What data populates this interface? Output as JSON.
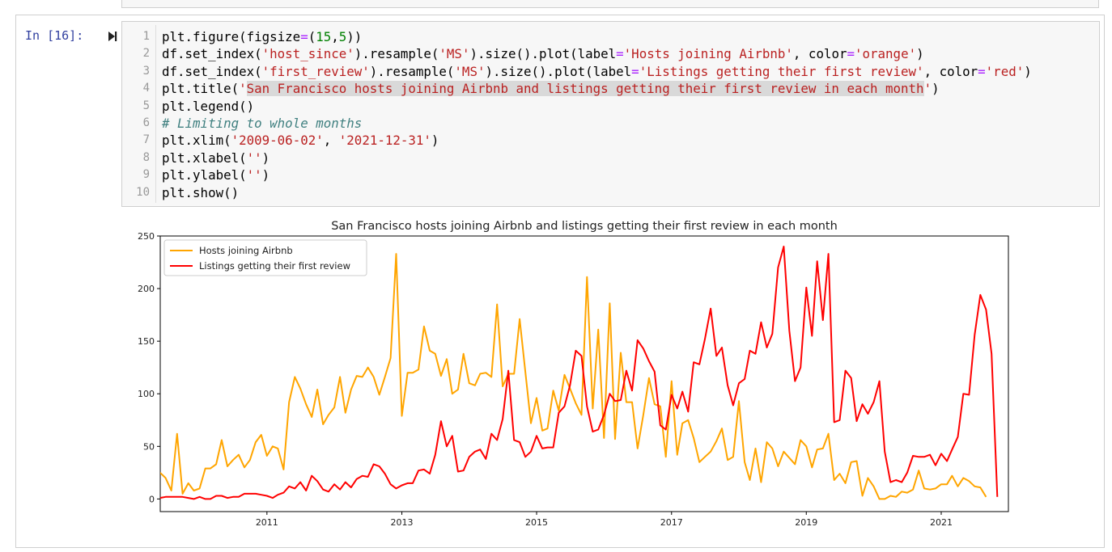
{
  "previous_cell": {},
  "cell": {
    "prompt": "In [16]:",
    "code": [
      {
        "no": "1",
        "parts": [
          {
            "t": "plt.figure(figsize"
          },
          {
            "t": "=",
            "k": "o"
          },
          {
            "t": "("
          },
          {
            "t": "15",
            "k": "n"
          },
          {
            "t": ","
          },
          {
            "t": "5",
            "k": "n"
          },
          {
            "t": "))"
          }
        ]
      },
      {
        "no": "2",
        "parts": [
          {
            "t": "df.set_index("
          },
          {
            "t": "'host_since'",
            "k": "s"
          },
          {
            "t": ").resample("
          },
          {
            "t": "'MS'",
            "k": "s"
          },
          {
            "t": ").size().plot(label"
          },
          {
            "t": "=",
            "k": "o"
          },
          {
            "t": "'Hosts joining Airbnb'",
            "k": "s"
          },
          {
            "t": ", color"
          },
          {
            "t": "=",
            "k": "o"
          },
          {
            "t": "'orange'",
            "k": "s"
          },
          {
            "t": ")"
          }
        ]
      },
      {
        "no": "3",
        "parts": [
          {
            "t": "df.set_index("
          },
          {
            "t": "'first_review'",
            "k": "s"
          },
          {
            "t": ").resample("
          },
          {
            "t": "'MS'",
            "k": "s"
          },
          {
            "t": ").size().plot(label"
          },
          {
            "t": "=",
            "k": "o"
          },
          {
            "t": "'Listings getting their first review'",
            "k": "s"
          },
          {
            "t": ", color"
          },
          {
            "t": "=",
            "k": "o"
          },
          {
            "t": "'red'",
            "k": "s"
          },
          {
            "t": ")"
          }
        ]
      },
      {
        "no": "4",
        "parts": [
          {
            "t": "plt.title("
          },
          {
            "t": "'",
            "k": "s"
          },
          {
            "t": "San Francisco hosts joining Airbnb and listings getting their first review in each month",
            "k": "s hl"
          },
          {
            "t": "'",
            "k": "s"
          },
          {
            "t": ")"
          }
        ]
      },
      {
        "no": "5",
        "parts": [
          {
            "t": "plt.legend()"
          }
        ]
      },
      {
        "no": "6",
        "parts": [
          {
            "t": "# Limiting to whole months",
            "k": "c"
          }
        ]
      },
      {
        "no": "7",
        "parts": [
          {
            "t": "plt.xlim("
          },
          {
            "t": "'2009-06-02'",
            "k": "s"
          },
          {
            "t": ", "
          },
          {
            "t": "'2021-12-31'",
            "k": "s"
          },
          {
            "t": ")"
          }
        ]
      },
      {
        "no": "8",
        "parts": [
          {
            "t": "plt.xlabel("
          },
          {
            "t": "''",
            "k": "s"
          },
          {
            "t": ")"
          }
        ]
      },
      {
        "no": "9",
        "parts": [
          {
            "t": "plt.ylabel("
          },
          {
            "t": "''",
            "k": "s"
          },
          {
            "t": ")"
          }
        ]
      },
      {
        "no": "10",
        "parts": [
          {
            "t": "plt.show()"
          }
        ]
      }
    ]
  },
  "colors": {
    "prompt": "#303f9f",
    "hosts": "orange",
    "listings": "red"
  },
  "chart_data": {
    "type": "line",
    "title": "San Francisco hosts joining Airbnb and listings getting their first review in each month",
    "xlabel": "",
    "ylabel": "",
    "x_tick_labels": [
      "2011",
      "2013",
      "2015",
      "2017",
      "2019",
      "2021"
    ],
    "y_tick_labels": [
      "0",
      "50",
      "100",
      "150",
      "200",
      "250"
    ],
    "xlim": [
      "2009-06-02",
      "2021-12-31"
    ],
    "ylim": [
      -12,
      250
    ],
    "grid": false,
    "legend_position": "upper-left",
    "series": [
      {
        "name": "Hosts joining Airbnb",
        "color": "orange",
        "start": "2009-06",
        "values": [
          25,
          20,
          8,
          62,
          5,
          15,
          8,
          10,
          29,
          29,
          33,
          56,
          31,
          37,
          42,
          30,
          37,
          54,
          61,
          41,
          50,
          48,
          28,
          92,
          116,
          105,
          90,
          78,
          104,
          71,
          80,
          87,
          116,
          82,
          104,
          117,
          116,
          125,
          116,
          99,
          116,
          134,
          233,
          79,
          120,
          120,
          123,
          164,
          141,
          138,
          117,
          133,
          100,
          104,
          138,
          110,
          108,
          119,
          120,
          116,
          185,
          107,
          119,
          119,
          171,
          121,
          72,
          96,
          65,
          67,
          103,
          84,
          118,
          105,
          91,
          80,
          211,
          86,
          161,
          58,
          186,
          57,
          139,
          92,
          92,
          48,
          80,
          115,
          90,
          88,
          40,
          112,
          42,
          72,
          75,
          58,
          35,
          40,
          45,
          55,
          67,
          37,
          40,
          93,
          35,
          18,
          48,
          16,
          54,
          48,
          31,
          45,
          39,
          33,
          56,
          50,
          30,
          47,
          48,
          62,
          18,
          24,
          15,
          35,
          36,
          3,
          20,
          12,
          0,
          0,
          3,
          2,
          7,
          6,
          9,
          27,
          10,
          9,
          10,
          14,
          14,
          22,
          12,
          20,
          17,
          12,
          11,
          2
        ]
      },
      {
        "name": "Listings getting their first review",
        "color": "red",
        "start": "2009-06",
        "values": [
          1,
          2,
          2,
          2,
          2,
          1,
          0,
          2,
          0,
          0,
          3,
          3,
          1,
          2,
          2,
          5,
          5,
          5,
          4,
          3,
          1,
          4,
          6,
          12,
          10,
          16,
          8,
          22,
          17,
          9,
          7,
          14,
          9,
          16,
          11,
          19,
          22,
          21,
          33,
          31,
          24,
          14,
          10,
          13,
          15,
          15,
          27,
          28,
          24,
          42,
          74,
          50,
          60,
          26,
          27,
          40,
          45,
          47,
          38,
          62,
          56,
          76,
          122,
          56,
          54,
          40,
          45,
          60,
          48,
          49,
          49,
          82,
          88,
          108,
          141,
          136,
          88,
          64,
          66,
          80,
          100,
          93,
          94,
          122,
          103,
          151,
          143,
          131,
          121,
          70,
          66,
          99,
          86,
          102,
          83,
          130,
          128,
          152,
          181,
          136,
          144,
          108,
          89,
          110,
          114,
          141,
          138,
          168,
          144,
          157,
          220,
          240,
          160,
          112,
          125,
          201,
          155,
          226,
          170,
          233,
          73,
          75,
          122,
          115,
          74,
          90,
          81,
          92,
          112,
          45,
          16,
          18,
          16,
          25,
          41,
          40,
          40,
          42,
          32,
          43,
          36,
          47,
          59,
          100,
          99,
          156,
          194,
          180,
          138,
          2
        ]
      }
    ]
  }
}
